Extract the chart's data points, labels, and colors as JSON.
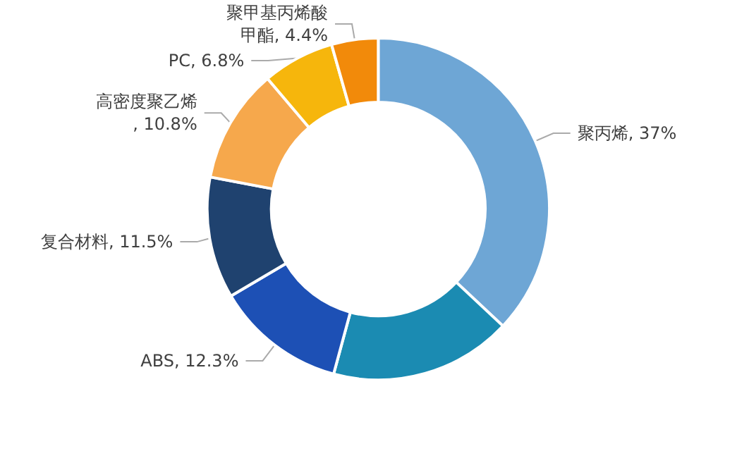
{
  "chart_data": {
    "type": "donut",
    "categories": [
      "聚丙烯",
      null,
      "ABS",
      "复合材料",
      "高密度聚乙烯",
      "PC",
      "聚甲基丙烯酸甲酯"
    ],
    "values": [
      37,
      17.2,
      12.3,
      11.5,
      10.8,
      6.8,
      4.4
    ],
    "colors": [
      "#6ea6d5",
      "#1b8bb2",
      "#1d50b5",
      "#1f426f",
      "#f6a84c",
      "#f6b60c",
      "#f28a0a"
    ],
    "value_labels": [
      ", 37%",
      null,
      ", 12.3%",
      ", 11.5%",
      ", 10.8%",
      ", 6.8%",
      ", 4.4%"
    ]
  }
}
